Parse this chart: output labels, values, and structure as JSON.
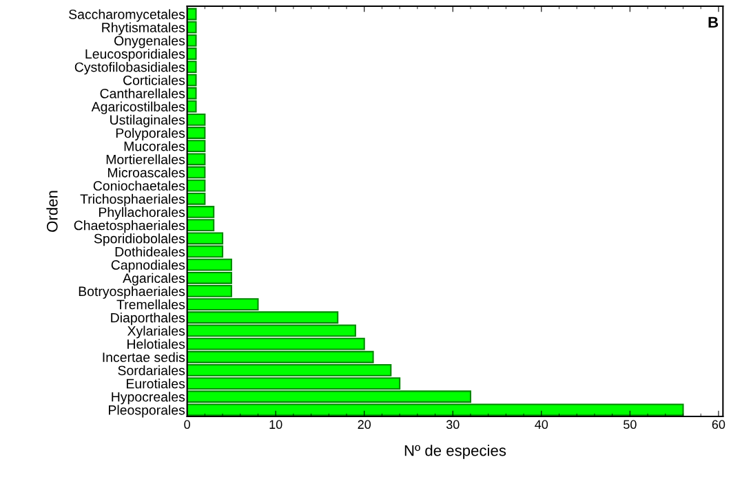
{
  "chart_data": {
    "type": "bar",
    "orientation": "horizontal",
    "categories": [
      "Saccharomycetales",
      "Rhytismatales",
      "Onygenales",
      "Leucosporidiales",
      "Cystofilobasidiales",
      "Corticiales",
      "Cantharellales",
      "Agaricostilbales",
      "Ustilaginales",
      "Polyporales",
      "Mucorales",
      "Mortierellales",
      "Microascales",
      "Coniochaetales",
      "Trichosphaeriales",
      "Phyllachorales",
      "Chaetosphaeriales",
      "Sporidiobolales",
      "Dothideales",
      "Capnodiales",
      "Agaricales",
      "Botryosphaeriales",
      "Tremellales",
      "Diaporthales",
      "Xylariales",
      "Helotiales",
      "Incertae sedis",
      "Sordariales",
      "Eurotiales",
      "Hypocreales",
      "Pleosporales"
    ],
    "values": [
      1,
      1,
      1,
      1,
      1,
      1,
      1,
      1,
      2,
      2,
      2,
      2,
      2,
      2,
      2,
      3,
      3,
      4,
      4,
      5,
      5,
      5,
      8,
      17,
      19,
      20,
      21,
      23,
      24,
      32,
      56
    ],
    "color": "#00ff00",
    "xlim": [
      0,
      60.5
    ],
    "xticks": [
      0,
      10,
      20,
      30,
      40,
      50,
      60
    ],
    "xlabel": "Nº de especies",
    "ylabel": "Orden",
    "annotations": [
      "B"
    ],
    "grid": false,
    "legend": false
  }
}
